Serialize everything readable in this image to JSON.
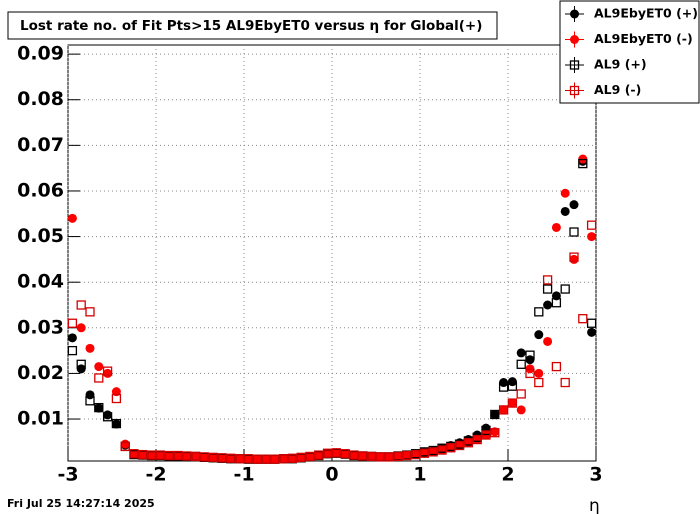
{
  "chart_data": {
    "type": "scatter",
    "title": "Lost rate no. of Fit Pts>15 AL9EbyET0 versus η for Global(+)",
    "x_label": "η",
    "timestamp": "Fri Jul 25 14:27:14 2025",
    "xlim": [
      -3,
      3
    ],
    "ylim": [
      0.0008,
      0.092
    ],
    "xticks": [
      -3,
      -2,
      -1,
      0,
      1,
      2,
      3
    ],
    "yticks": [
      0.01,
      0.02,
      0.03,
      0.04,
      0.05,
      0.06,
      0.07,
      0.08,
      0.09
    ],
    "grid": true,
    "legend": "top-right",
    "x": [
      -2.95,
      -2.85,
      -2.75,
      -2.65,
      -2.55,
      -2.45,
      -2.35,
      -2.25,
      -2.15,
      -2.05,
      -1.95,
      -1.85,
      -1.75,
      -1.65,
      -1.55,
      -1.45,
      -1.35,
      -1.25,
      -1.15,
      -1.05,
      -0.95,
      -0.85,
      -0.75,
      -0.65,
      -0.55,
      -0.45,
      -0.35,
      -0.25,
      -0.15,
      -0.05,
      0.05,
      0.15,
      0.25,
      0.35,
      0.45,
      0.55,
      0.65,
      0.75,
      0.85,
      0.95,
      1.05,
      1.15,
      1.25,
      1.35,
      1.45,
      1.55,
      1.65,
      1.75,
      1.85,
      1.95,
      2.05,
      2.15,
      2.25,
      2.35,
      2.45,
      2.55,
      2.65,
      2.75,
      2.85,
      2.95
    ],
    "series": [
      {
        "name": "AL9EbyET0 (+)",
        "color": "#000000",
        "marker": "circle",
        "values": [
          0.0278,
          0.021,
          0.0153,
          0.0124,
          0.0109,
          0.0089,
          0.0043,
          0.0022,
          0.0021,
          0.002,
          0.002,
          0.0019,
          0.0019,
          0.0018,
          0.0018,
          0.0016,
          0.0015,
          0.0014,
          0.0013,
          0.0013,
          0.0012,
          0.0012,
          0.0012,
          0.0012,
          0.0013,
          0.0013,
          0.0015,
          0.0017,
          0.002,
          0.0024,
          0.0025,
          0.0023,
          0.002,
          0.0019,
          0.0018,
          0.0017,
          0.0017,
          0.0019,
          0.0021,
          0.0024,
          0.0028,
          0.0031,
          0.0036,
          0.0042,
          0.0048,
          0.0055,
          0.0065,
          0.008,
          0.011,
          0.018,
          0.0182,
          0.0245,
          0.023,
          0.0285,
          0.035,
          0.037,
          0.0555,
          0.057,
          0.0665,
          0.029
        ]
      },
      {
        "name": "AL9EbyET0 (-)",
        "color": "#ff0000",
        "marker": "circle",
        "values": [
          0.054,
          0.03,
          0.0255,
          0.0215,
          0.02,
          0.016,
          0.0045,
          0.0024,
          0.0022,
          0.0021,
          0.0021,
          0.002,
          0.002,
          0.0019,
          0.0018,
          0.0017,
          0.0016,
          0.0015,
          0.0014,
          0.0013,
          0.0013,
          0.0012,
          0.0012,
          0.0012,
          0.0013,
          0.0014,
          0.0016,
          0.0018,
          0.0021,
          0.0025,
          0.0026,
          0.0024,
          0.0021,
          0.0019,
          0.0018,
          0.0017,
          0.0017,
          0.0018,
          0.002,
          0.0022,
          0.0025,
          0.0028,
          0.0032,
          0.0037,
          0.0042,
          0.0048,
          0.0055,
          0.0065,
          0.0072,
          0.012,
          0.0135,
          0.012,
          0.021,
          0.02,
          0.027,
          0.052,
          0.0595,
          0.045,
          0.067,
          0.05
        ]
      },
      {
        "name": "AL9 (+)",
        "color": "#000000",
        "marker": "open-square",
        "values": [
          0.025,
          0.022,
          0.014,
          0.0125,
          0.0105,
          0.009,
          0.004,
          0.0022,
          0.0021,
          0.002,
          0.002,
          0.0019,
          0.0019,
          0.0018,
          0.0018,
          0.0016,
          0.0015,
          0.0014,
          0.0013,
          0.0013,
          0.0012,
          0.0012,
          0.0012,
          0.0012,
          0.0013,
          0.0013,
          0.0015,
          0.0017,
          0.002,
          0.0024,
          0.0025,
          0.0023,
          0.002,
          0.0019,
          0.0018,
          0.0017,
          0.0017,
          0.0019,
          0.0021,
          0.0024,
          0.0028,
          0.0031,
          0.0036,
          0.004,
          0.0045,
          0.0052,
          0.006,
          0.0075,
          0.011,
          0.017,
          0.0172,
          0.022,
          0.024,
          0.0335,
          0.0385,
          0.0355,
          0.0385,
          0.051,
          0.066,
          0.031
        ]
      },
      {
        "name": "AL9 (-)",
        "color": "#d40000",
        "marker": "open-square",
        "values": [
          0.031,
          0.035,
          0.0335,
          0.019,
          0.0205,
          0.0145,
          0.004,
          0.0024,
          0.0022,
          0.0021,
          0.0021,
          0.002,
          0.002,
          0.0019,
          0.0018,
          0.0017,
          0.0016,
          0.0015,
          0.0014,
          0.0013,
          0.0013,
          0.0012,
          0.0012,
          0.0012,
          0.0013,
          0.0014,
          0.0016,
          0.0018,
          0.0021,
          0.0025,
          0.0026,
          0.0024,
          0.0021,
          0.0019,
          0.0018,
          0.0017,
          0.0017,
          0.0018,
          0.002,
          0.0022,
          0.0025,
          0.0028,
          0.0032,
          0.0037,
          0.0042,
          0.0048,
          0.0055,
          0.0065,
          0.007,
          0.012,
          0.0135,
          0.0155,
          0.02,
          0.018,
          0.0405,
          0.0215,
          0.018,
          0.0455,
          0.032,
          0.0525
        ]
      }
    ]
  }
}
